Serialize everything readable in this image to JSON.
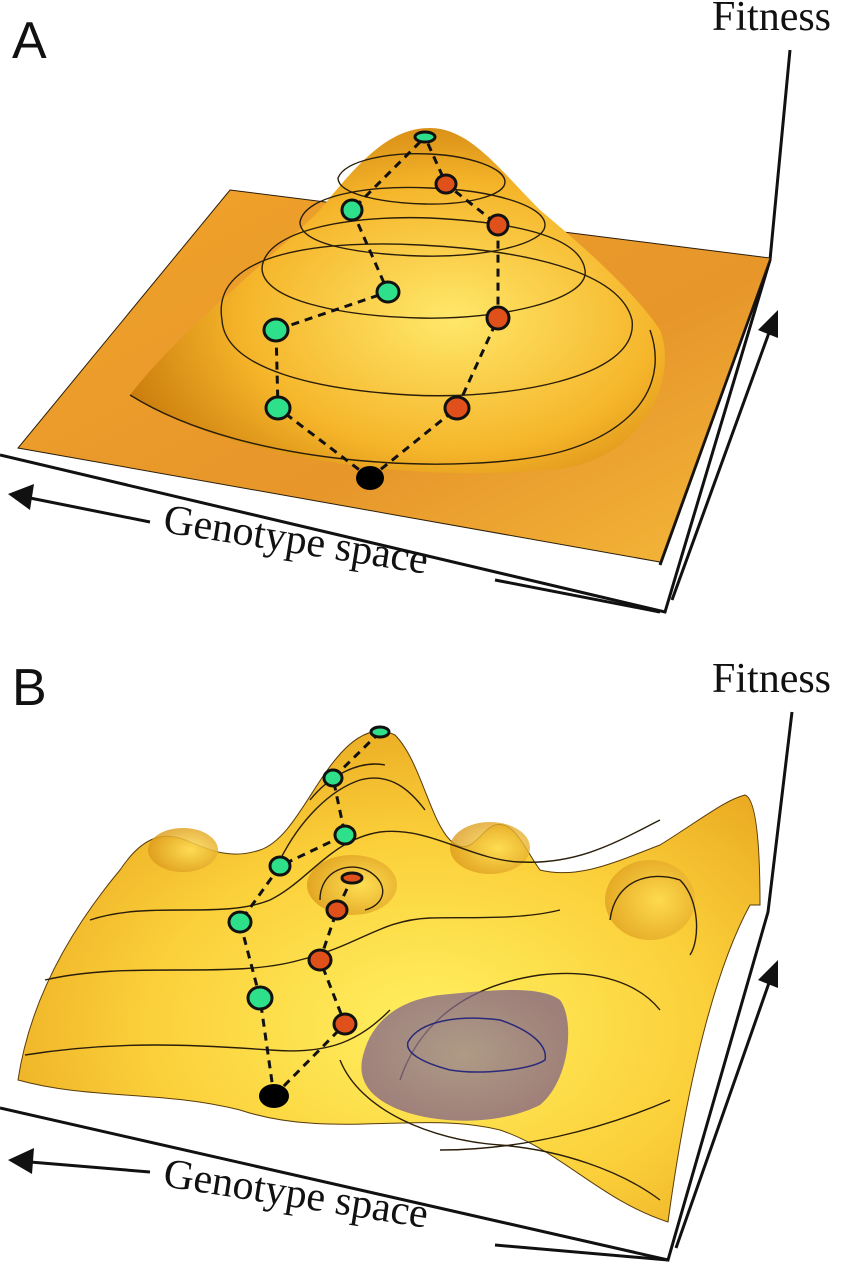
{
  "panels": [
    {
      "label": "A",
      "y_axis_label": "Fitness",
      "x_axis_label": "Genotype space"
    },
    {
      "label": "B",
      "y_axis_label": "Fitness",
      "x_axis_label": "Genotype space"
    }
  ],
  "colors": {
    "surface_dark": "#d98a10",
    "surface_light": "#ffe14a",
    "green_node": "#2ee08a",
    "red_node": "#e0501a",
    "start_node": "#000000",
    "shaded_region": "#8a6e9a"
  }
}
